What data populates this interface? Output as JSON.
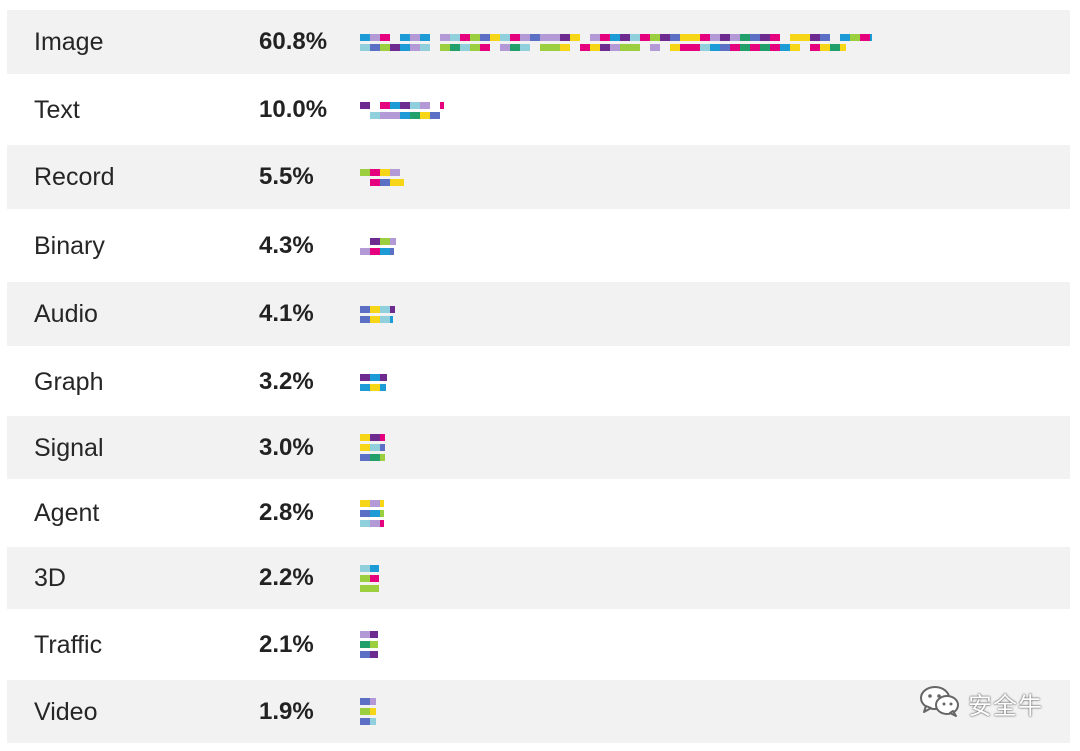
{
  "chart_data": {
    "type": "bar",
    "orientation": "horizontal",
    "categories": [
      "Image",
      "Text",
      "Record",
      "Binary",
      "Audio",
      "Graph",
      "Signal",
      "Agent",
      "3D",
      "Traffic",
      "Video"
    ],
    "values": [
      60.8,
      10.0,
      5.5,
      4.3,
      4.1,
      3.2,
      3.0,
      2.8,
      2.2,
      2.1,
      1.9
    ],
    "value_labels": [
      "60.8%",
      "10.0%",
      "5.5%",
      "4.3%",
      "4.1%",
      "3.2%",
      "3.0%",
      "2.8%",
      "2.2%",
      "2.1%",
      "1.9%"
    ],
    "title": "",
    "xlabel": "",
    "ylabel": "",
    "grid": false,
    "legend": "none",
    "row_colors": [
      "#f2f2f2",
      "#ffffff"
    ]
  },
  "palette": [
    "#9ccf3f",
    "#8fd0dc",
    "#b39ad6",
    "#f7d517",
    "#e5007d",
    "#1c9bd7",
    "#6d2b8f",
    "#22a06b",
    "#5b6fc4",
    "#d2d2d2"
  ],
  "watermark": {
    "icon": "wechat-icon",
    "text": "安全牛"
  }
}
